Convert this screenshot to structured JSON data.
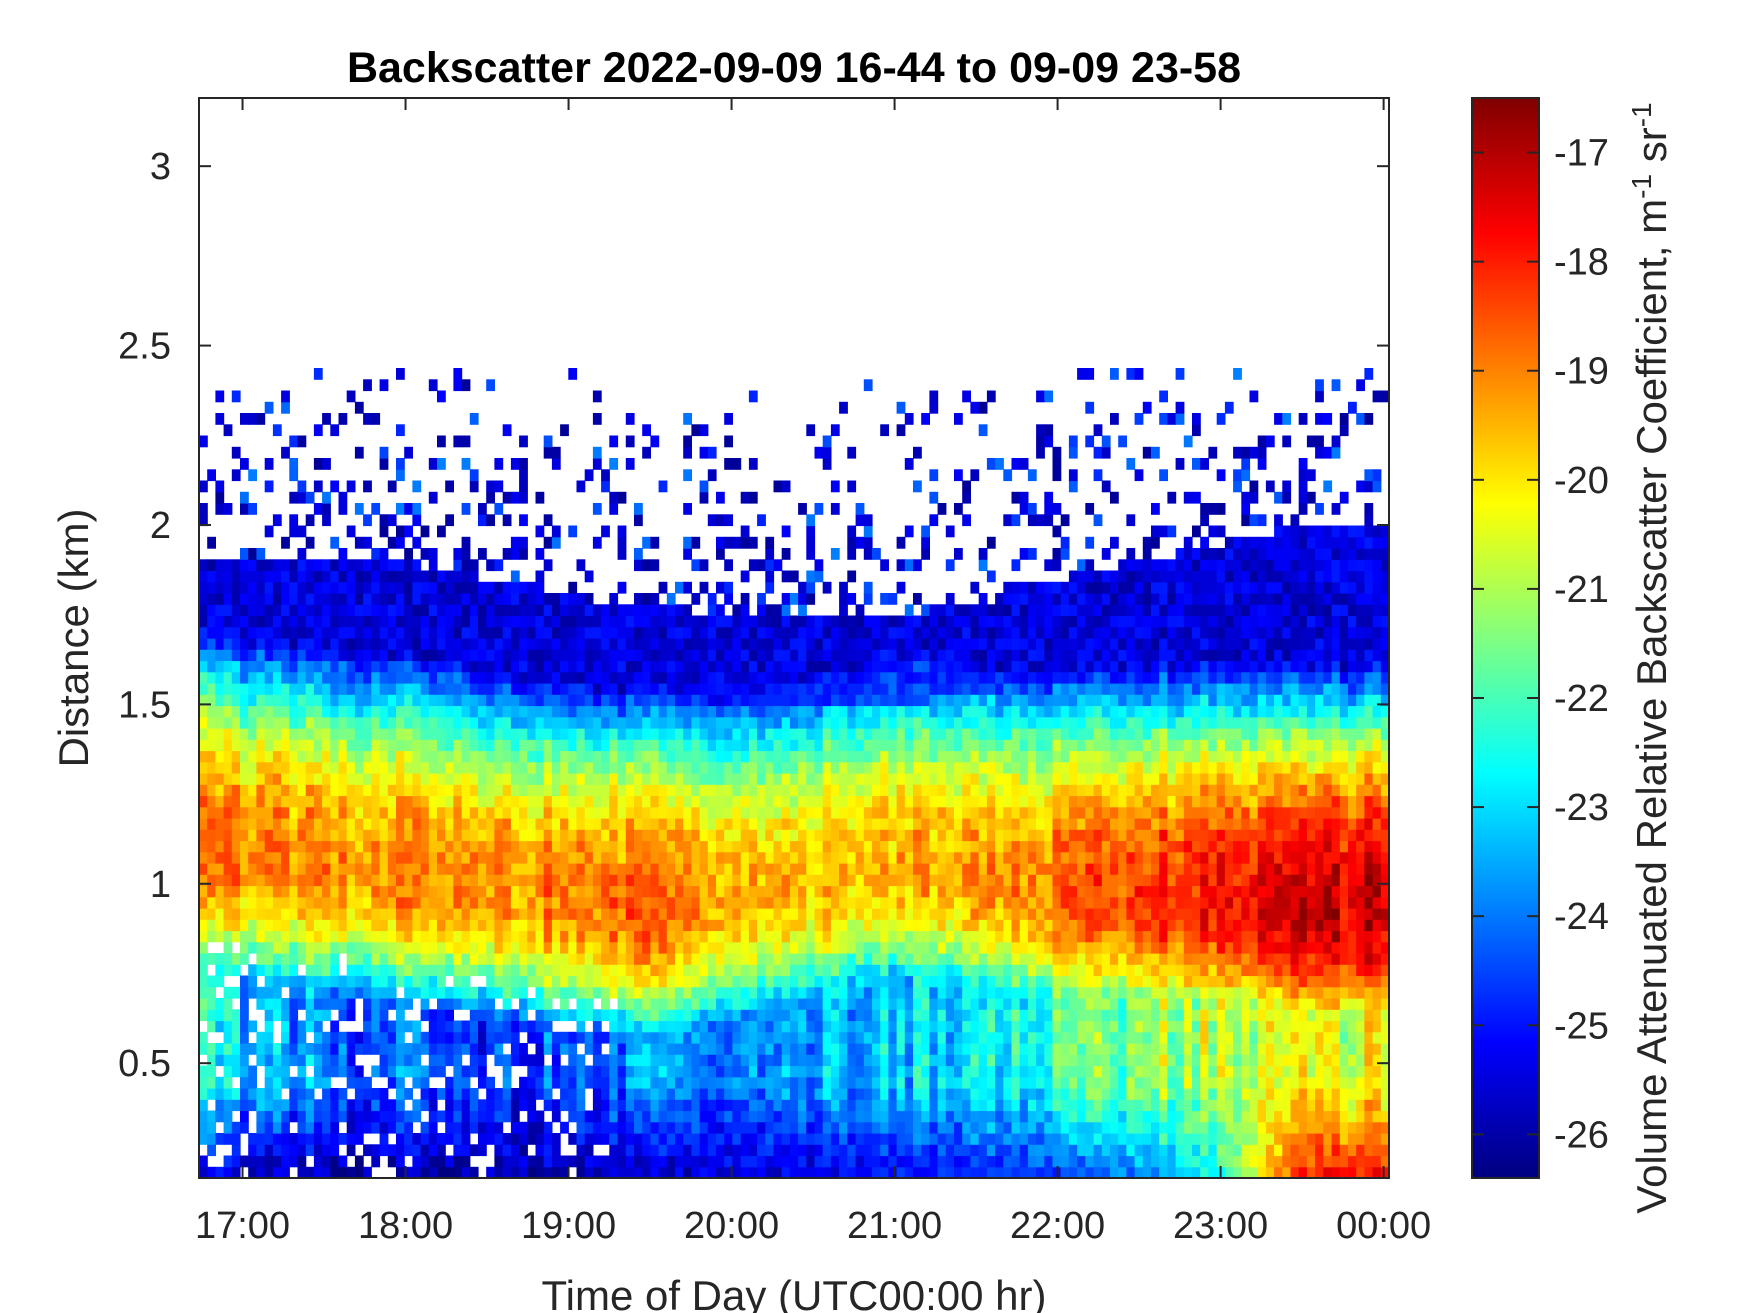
{
  "chart_data": {
    "type": "heatmap",
    "title": "Backscatter 2022-09-09 16-44 to 09-09 23-58",
    "xlabel": "Time of Day (UTC00:00 hr)",
    "ylabel": "Distance (km)",
    "colorbar_label": "Volume Attenuated Relative Backscatter Coefficient, m",
    "colorbar_label_units": [
      "-1",
      " sr",
      "-1"
    ],
    "colormap": "jet",
    "x_unit": "hours UTC",
    "xlim": [
      16.733,
      24.033
    ],
    "ylim": [
      0.18,
      3.19
    ],
    "clim": [
      -26.4,
      -16.5
    ],
    "x_ticks": [
      {
        "value": 17,
        "label": "17:00"
      },
      {
        "value": 18,
        "label": "18:00"
      },
      {
        "value": 19,
        "label": "19:00"
      },
      {
        "value": 20,
        "label": "20:00"
      },
      {
        "value": 21,
        "label": "21:00"
      },
      {
        "value": 22,
        "label": "22:00"
      },
      {
        "value": 23,
        "label": "23:00"
      },
      {
        "value": 24,
        "label": "00:00"
      }
    ],
    "y_ticks": [
      {
        "value": 0.5,
        "label": "0.5"
      },
      {
        "value": 1,
        "label": "1"
      },
      {
        "value": 1.5,
        "label": "1.5"
      },
      {
        "value": 2,
        "label": "2"
      },
      {
        "value": 2.5,
        "label": "2.5"
      },
      {
        "value": 3,
        "label": "3"
      }
    ],
    "colorbar_ticks": [
      {
        "value": -17,
        "label": "-17"
      },
      {
        "value": -18,
        "label": "-18"
      },
      {
        "value": -19,
        "label": "-19"
      },
      {
        "value": -20,
        "label": "-20"
      },
      {
        "value": -21,
        "label": "-21"
      },
      {
        "value": -22,
        "label": "-22"
      },
      {
        "value": -23,
        "label": "-23"
      },
      {
        "value": -24,
        "label": "-24"
      },
      {
        "value": -25,
        "label": "-25"
      },
      {
        "value": -26,
        "label": "-26"
      }
    ],
    "grid": false,
    "profile": {
      "time_hours": [
        16.75,
        17.0,
        17.5,
        18.0,
        18.5,
        19.0,
        19.5,
        20.0,
        20.5,
        21.0,
        21.5,
        22.0,
        22.5,
        23.0,
        23.5,
        24.0
      ],
      "layer_peak_km": [
        1.1,
        1.08,
        1.05,
        1.03,
        1.0,
        0.96,
        0.93,
        0.96,
        1.0,
        1.05,
        1.02,
        0.98,
        0.97,
        0.95,
        0.93,
        0.93
      ],
      "layer_peak_dB": [
        -18.8,
        -18.9,
        -19.0,
        -19.0,
        -19.1,
        -19.0,
        -18.8,
        -19.2,
        -19.5,
        -19.5,
        -19.2,
        -18.7,
        -18.2,
        -17.8,
        -17.4,
        -17.2
      ],
      "signal_top_km": [
        1.9,
        1.9,
        1.9,
        1.9,
        1.85,
        1.8,
        1.78,
        1.75,
        1.75,
        1.75,
        1.78,
        1.85,
        1.9,
        1.95,
        2.0,
        2.0
      ],
      "below_layer_dB": [
        -22.6,
        -23.2,
        -24.0,
        -24.3,
        -24.6,
        -24.5,
        -24.0,
        -23.5,
        -23.4,
        -23.2,
        -22.8,
        -22.0,
        -21.2,
        -20.9,
        -20.6,
        -20.5
      ],
      "surface_layer_dB": [
        -25.5,
        -25.8,
        -26.0,
        -26.0,
        -26.0,
        -25.9,
        -25.8,
        -25.6,
        -25.5,
        -25.3,
        -25.0,
        -24.6,
        -24.0,
        -22.5,
        -18.0,
        -17.8
      ]
    },
    "sparse_cloud_band_km": [
      1.9,
      2.45
    ]
  }
}
